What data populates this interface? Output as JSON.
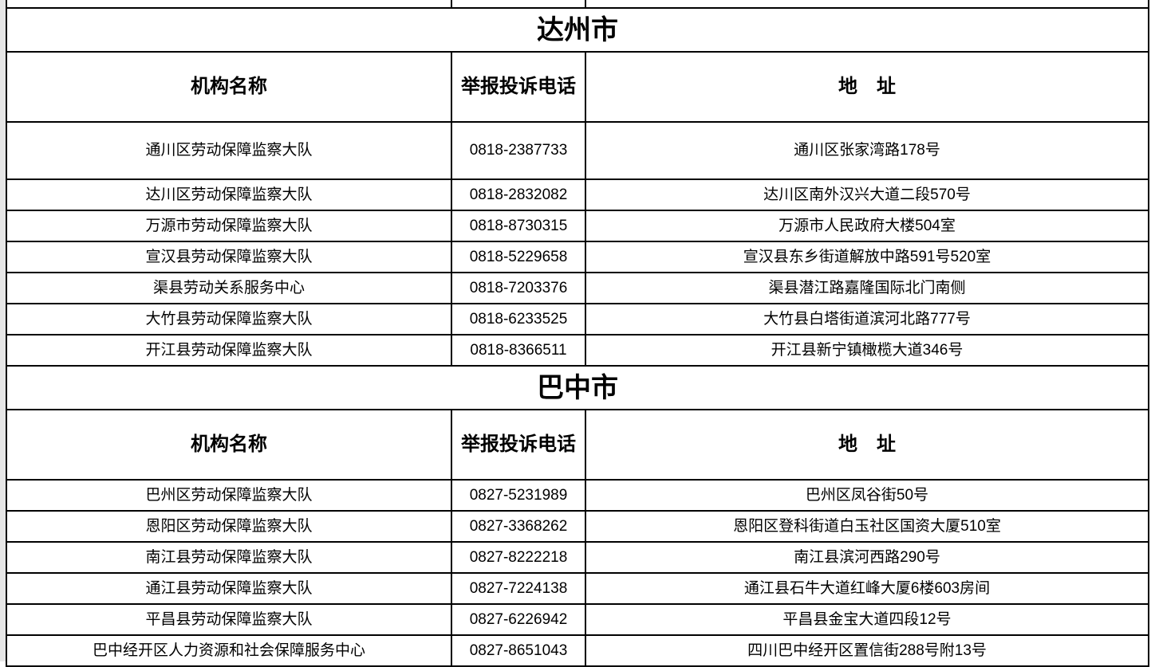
{
  "sections": [
    {
      "city": "达州市",
      "headers": {
        "name": "机构名称",
        "phone": "举报投诉电话",
        "address": "地　址"
      },
      "rows": [
        {
          "name": "通川区劳动保障监察大队",
          "phone": "0818-2387733",
          "address": "通川区张家湾路178号"
        },
        {
          "name": "达川区劳动保障监察大队",
          "phone": "0818-2832082",
          "address": "达川区南外汉兴大道二段570号"
        },
        {
          "name": "万源市劳动保障监察大队",
          "phone": "0818-8730315",
          "address": "万源市人民政府大楼504室"
        },
        {
          "name": "宣汉县劳动保障监察大队",
          "phone": "0818-5229658",
          "address": "宣汉县东乡街道解放中路591号520室"
        },
        {
          "name": "渠县劳动关系服务中心",
          "phone": "0818-7203376",
          "address": "渠县潜江路嘉隆国际北门南侧"
        },
        {
          "name": "大竹县劳动保障监察大队",
          "phone": "0818-6233525",
          "address": "大竹县白塔街道滨河北路777号"
        },
        {
          "name": "开江县劳动保障监察大队",
          "phone": "0818-8366511",
          "address": "开江县新宁镇橄榄大道346号"
        }
      ]
    },
    {
      "city": "巴中市",
      "headers": {
        "name": "机构名称",
        "phone": "举报投诉电话",
        "address": "地　址"
      },
      "rows": [
        {
          "name": "巴州区劳动保障监察大队",
          "phone": "0827-5231989",
          "address": "巴州区凤谷街50号"
        },
        {
          "name": "恩阳区劳动保障监察大队",
          "phone": "0827-3368262",
          "address": "恩阳区登科街道白玉社区国资大厦510室"
        },
        {
          "name": "南江县劳动保障监察大队",
          "phone": "0827-8222218",
          "address": "南江县滨河西路290号"
        },
        {
          "name": "通江县劳动保障监察大队",
          "phone": "0827-7224138",
          "address": "通江县石牛大道红峰大厦6楼603房间"
        },
        {
          "name": "平昌县劳动保障监察大队",
          "phone": "0827-6226942",
          "address": "平昌县金宝大道四段12号"
        },
        {
          "name": "巴中经开区人力资源和社会保障服务中心",
          "phone": "0827-8651043",
          "address": "四川巴中经开区置信街288号附13号"
        }
      ]
    }
  ]
}
